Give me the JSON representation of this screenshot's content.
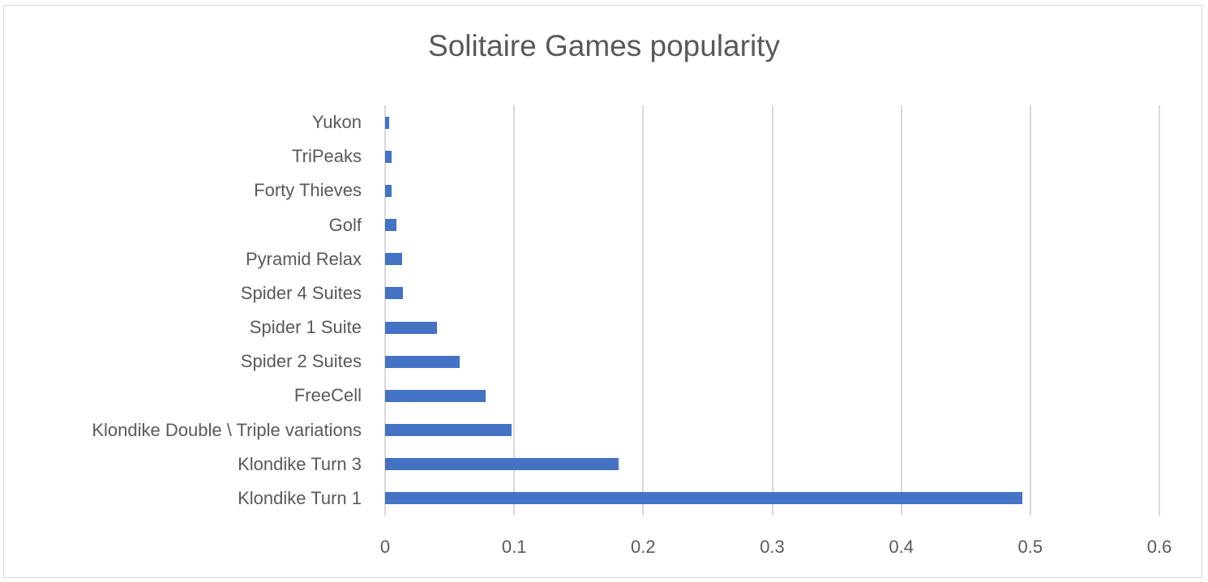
{
  "chart_data": {
    "type": "bar",
    "orientation": "horizontal",
    "title": "Solitaire Games popularity",
    "xlabel": "",
    "ylabel": "",
    "xlim": [
      0,
      0.6
    ],
    "grid": true,
    "legend": null,
    "bar_color": "#4472c4",
    "categories": [
      "Klondike Turn 1",
      "Klondike Turn 3",
      "Klondike Double \\ Triple variations",
      "FreeCell",
      "Spider 2 Suites",
      "Spider 1 Suite",
      "Spider 4 Suites",
      "Pyramid Relax",
      "Golf",
      "Forty Thieves",
      "TriPeaks",
      "Yukon"
    ],
    "values": [
      0.494,
      0.181,
      0.098,
      0.078,
      0.058,
      0.04,
      0.014,
      0.013,
      0.009,
      0.005,
      0.005,
      0.003
    ],
    "x_ticks": [
      "0",
      "0.1",
      "0.2",
      "0.3",
      "0.4",
      "0.5",
      "0.6"
    ]
  }
}
